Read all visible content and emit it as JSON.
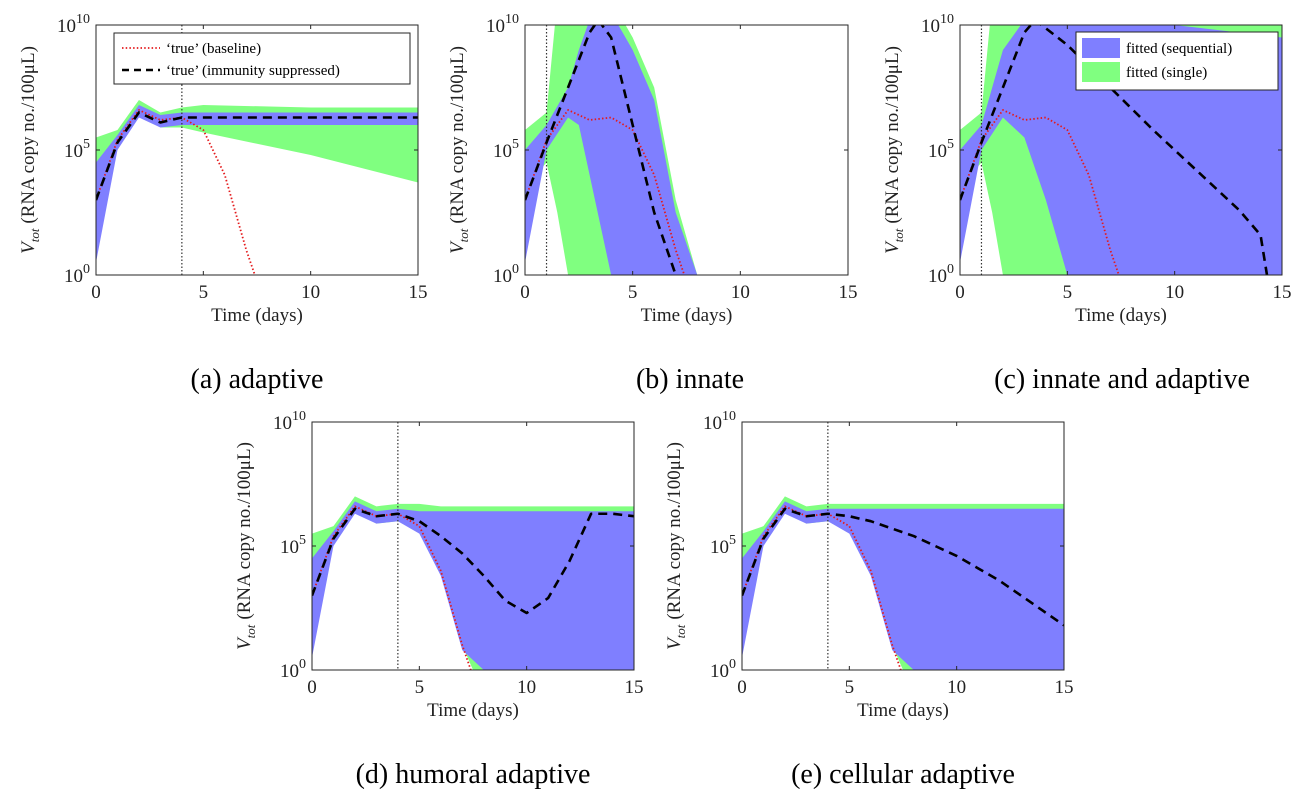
{
  "chart_data": [
    {
      "panel": "a",
      "type": "line",
      "caption": "(a) adaptive",
      "xlabel": "Time (days)",
      "ylabel_main": "V",
      "ylabel_sub": "tot",
      "ylabel_rest": "(RNA copy no./100μL)",
      "yscale": "log",
      "xlim": [
        0,
        15
      ],
      "ylim_log10": [
        0,
        10
      ],
      "xticks": [
        "0",
        "5",
        "10",
        "15"
      ],
      "yticks": [
        {
          "base": "10",
          "exp": "0"
        },
        {
          "base": "10",
          "exp": "5"
        },
        {
          "base": "10",
          "exp": "10"
        }
      ],
      "vline_x": 4,
      "legend": {
        "placement": "top-left",
        "entries": [
          "‘true’ (baseline)",
          "‘true’ (immunity suppressed)"
        ]
      },
      "series": [
        {
          "name": "‘true’ (baseline)",
          "color": "#e41a1c",
          "style": "dotted",
          "x": [
            0,
            1,
            2,
            3,
            4,
            5,
            6,
            7,
            7.4
          ],
          "log10_y": [
            3,
            5.4,
            6.6,
            6.2,
            6.3,
            5.8,
            4.0,
            1.0,
            0
          ]
        },
        {
          "name": "‘true’ (immunity suppressed)",
          "color": "#000000",
          "style": "dashed",
          "x": [
            0,
            1,
            2,
            3,
            4,
            5,
            10,
            15
          ],
          "log10_y": [
            3,
            5.3,
            6.5,
            6.1,
            6.3,
            6.3,
            6.3,
            6.3
          ]
        }
      ],
      "bands": [
        {
          "name": "fitted (single)",
          "color": "#80ff80",
          "x": [
            0,
            1,
            2,
            3,
            4,
            5,
            10,
            15
          ],
          "upper": [
            5.5,
            5.8,
            7.0,
            6.5,
            6.7,
            6.8,
            6.7,
            6.7
          ],
          "lower": [
            3.5,
            5.2,
            6.4,
            5.9,
            5.9,
            5.7,
            4.8,
            3.7
          ]
        },
        {
          "name": "fitted (sequential)",
          "color": "#7f7fff",
          "x": [
            0,
            1,
            2,
            3,
            4,
            5,
            10,
            15
          ],
          "upper": [
            4.5,
            5.6,
            6.8,
            6.4,
            6.5,
            6.5,
            6.5,
            6.5
          ],
          "lower": [
            0.5,
            5.0,
            6.3,
            5.9,
            6.0,
            6.0,
            6.0,
            6.0
          ]
        }
      ]
    },
    {
      "panel": "b",
      "type": "line",
      "caption": "(b) innate",
      "xlabel": "Time (days)",
      "ylabel_main": "V",
      "ylabel_sub": "tot",
      "ylabel_rest": "(RNA copy no./100μL)",
      "yscale": "log",
      "xlim": [
        0,
        15
      ],
      "ylim_log10": [
        0,
        10
      ],
      "xticks": [
        "0",
        "5",
        "10",
        "15"
      ],
      "yticks": [
        {
          "base": "10",
          "exp": "0"
        },
        {
          "base": "10",
          "exp": "5"
        },
        {
          "base": "10",
          "exp": "10"
        }
      ],
      "vline_x": 1,
      "series": [
        {
          "name": "‘true’ (baseline)",
          "color": "#e41a1c",
          "style": "dotted",
          "x": [
            0,
            1,
            2,
            3,
            4,
            5,
            6,
            7,
            7.4
          ],
          "log10_y": [
            3,
            5.4,
            6.6,
            6.2,
            6.3,
            5.8,
            4.0,
            1.0,
            0
          ]
        },
        {
          "name": "‘true’ (immunity suppressed)",
          "color": "#000000",
          "style": "dashed",
          "x": [
            0,
            1,
            2,
            3,
            3.4,
            4,
            5,
            6,
            7
          ],
          "log10_y": [
            3,
            5.3,
            7.5,
            9.7,
            10.2,
            9.5,
            6.0,
            2.5,
            0
          ]
        }
      ],
      "bands": [
        {
          "name": "fitted (single)",
          "color": "#80ff80",
          "x": [
            0,
            1,
            1.5,
            2,
            3,
            4,
            5,
            6,
            7,
            8
          ],
          "upper": [
            5.8,
            6.5,
            11,
            11,
            11,
            11,
            9.5,
            7.5,
            3.0,
            0
          ],
          "lower": [
            3.5,
            4.5,
            2.5,
            0,
            0,
            0,
            0,
            0,
            0,
            0
          ]
        },
        {
          "name": "fitted (sequential)",
          "color": "#7f7fff",
          "x": [
            0,
            1,
            2,
            2.5,
            3,
            4,
            5,
            6,
            7,
            8
          ],
          "upper": [
            5.0,
            6.0,
            7.5,
            9.0,
            10.2,
            10.5,
            9.0,
            7.0,
            2.5,
            0
          ],
          "lower": [
            0.5,
            5.0,
            6.3,
            6.0,
            4.0,
            0,
            0,
            0,
            0,
            0
          ]
        }
      ]
    },
    {
      "panel": "c",
      "type": "line",
      "caption": "(c) innate and adaptive",
      "xlabel": "Time (days)",
      "ylabel_main": "V",
      "ylabel_sub": "tot",
      "ylabel_rest": "(RNA copy no./100μL)",
      "yscale": "log",
      "xlim": [
        0,
        15
      ],
      "ylim_log10": [
        0,
        10
      ],
      "xticks": [
        "0",
        "5",
        "10",
        "15"
      ],
      "yticks": [
        {
          "base": "10",
          "exp": "0"
        },
        {
          "base": "10",
          "exp": "5"
        },
        {
          "base": "10",
          "exp": "10"
        }
      ],
      "vline_x": 1,
      "legend": {
        "placement": "top-right",
        "entries": [
          "fitted (sequential)",
          "fitted (single)"
        ]
      },
      "series": [
        {
          "name": "‘true’ (baseline)",
          "color": "#e41a1c",
          "style": "dotted",
          "x": [
            0,
            1,
            2,
            3,
            4,
            5,
            6,
            7,
            7.4
          ],
          "log10_y": [
            3,
            5.4,
            6.6,
            6.2,
            6.3,
            5.8,
            4.0,
            1.0,
            0
          ]
        },
        {
          "name": "‘true’ (immunity suppressed)",
          "color": "#000000",
          "style": "dashed",
          "x": [
            0,
            1,
            2,
            3,
            3.5,
            5,
            7,
            9,
            11,
            13,
            14,
            14.3
          ],
          "log10_y": [
            3,
            5.3,
            7.5,
            9.7,
            10.2,
            9.2,
            7.5,
            5.8,
            4.2,
            2.6,
            1.6,
            0
          ]
        }
      ],
      "bands": [
        {
          "name": "fitted (single)",
          "color": "#80ff80",
          "x": [
            0,
            1,
            1.5,
            2,
            3,
            4,
            5,
            10,
            15
          ],
          "upper": [
            5.8,
            6.5,
            11,
            11,
            11,
            11,
            11,
            10.5,
            10.0
          ],
          "lower": [
            3.5,
            4.5,
            2.5,
            0,
            0,
            0,
            0,
            0,
            0
          ]
        },
        {
          "name": "fitted (sequential)",
          "color": "#7f7fff",
          "x": [
            0,
            1,
            2,
            3,
            4,
            5,
            10,
            15
          ],
          "upper": [
            5.0,
            6.0,
            9.0,
            10.2,
            10.2,
            10.2,
            10.0,
            9.5
          ],
          "lower": [
            0.5,
            5.0,
            6.3,
            5.5,
            3.0,
            0,
            0,
            0
          ]
        }
      ]
    },
    {
      "panel": "d",
      "type": "line",
      "caption": "(d) humoral adaptive",
      "xlabel": "Time (days)",
      "ylabel_main": "V",
      "ylabel_sub": "tot",
      "ylabel_rest": "(RNA copy no./100μL)",
      "yscale": "log",
      "xlim": [
        0,
        15
      ],
      "ylim_log10": [
        0,
        10
      ],
      "xticks": [
        "0",
        "5",
        "10",
        "15"
      ],
      "yticks": [
        {
          "base": "10",
          "exp": "0"
        },
        {
          "base": "10",
          "exp": "5"
        },
        {
          "base": "10",
          "exp": "10"
        }
      ],
      "vline_x": 4,
      "series": [
        {
          "name": "‘true’ (baseline)",
          "color": "#e41a1c",
          "style": "dotted",
          "x": [
            0,
            1,
            2,
            3,
            4,
            5,
            6,
            7,
            7.4
          ],
          "log10_y": [
            3,
            5.4,
            6.6,
            6.2,
            6.3,
            5.8,
            4.0,
            1.0,
            0
          ]
        },
        {
          "name": "‘true’ (immunity suppressed)",
          "color": "#000000",
          "style": "dashed",
          "x": [
            0,
            1,
            2,
            3,
            4,
            5,
            6,
            7,
            8,
            9,
            10,
            11,
            12,
            13,
            14,
            15
          ],
          "log10_y": [
            3,
            5.3,
            6.5,
            6.2,
            6.3,
            6.0,
            5.4,
            4.7,
            3.8,
            2.8,
            2.3,
            2.9,
            4.4,
            6.3,
            6.3,
            6.2
          ]
        }
      ],
      "bands": [
        {
          "name": "fitted (single)",
          "color": "#80ff80",
          "x": [
            0,
            1,
            2,
            3,
            4,
            5,
            6,
            7,
            7.5,
            8,
            10,
            15
          ],
          "upper": [
            5.5,
            5.8,
            7.0,
            6.6,
            6.7,
            6.7,
            6.6,
            6.6,
            6.6,
            6.6,
            6.6,
            6.6
          ],
          "lower": [
            3.5,
            5.2,
            6.4,
            5.9,
            6.0,
            5.6,
            4.0,
            1.0,
            0,
            0,
            0,
            0
          ]
        },
        {
          "name": "fitted (sequential)",
          "color": "#7f7fff",
          "x": [
            0,
            1,
            2,
            3,
            4,
            5,
            6,
            7,
            8,
            10,
            15
          ],
          "upper": [
            4.5,
            5.6,
            6.8,
            6.4,
            6.5,
            6.4,
            6.4,
            6.4,
            6.4,
            6.4,
            6.4
          ],
          "lower": [
            0.5,
            5.0,
            6.3,
            5.9,
            6.0,
            5.5,
            3.8,
            0.8,
            0,
            0,
            0
          ]
        }
      ]
    },
    {
      "panel": "e",
      "type": "line",
      "caption": "(e) cellular adaptive",
      "xlabel": "Time (days)",
      "ylabel_main": "V",
      "ylabel_sub": "tot",
      "ylabel_rest": "(RNA copy no./100μL)",
      "yscale": "log",
      "xlim": [
        0,
        15
      ],
      "ylim_log10": [
        0,
        10
      ],
      "xticks": [
        "0",
        "5",
        "10",
        "15"
      ],
      "yticks": [
        {
          "base": "10",
          "exp": "0"
        },
        {
          "base": "10",
          "exp": "5"
        },
        {
          "base": "10",
          "exp": "10"
        }
      ],
      "vline_x": 4,
      "series": [
        {
          "name": "‘true’ (baseline)",
          "color": "#e41a1c",
          "style": "dotted",
          "x": [
            0,
            1,
            2,
            3,
            4,
            5,
            6,
            7,
            7.4
          ],
          "log10_y": [
            3,
            5.4,
            6.6,
            6.2,
            6.3,
            5.8,
            4.0,
            1.0,
            0
          ]
        },
        {
          "name": "‘true’ (immunity suppressed)",
          "color": "#000000",
          "style": "dashed",
          "x": [
            0,
            1,
            2,
            3,
            4,
            5,
            6,
            7,
            8,
            9,
            10,
            11,
            12,
            13,
            14,
            15
          ],
          "log10_y": [
            3,
            5.3,
            6.5,
            6.2,
            6.3,
            6.2,
            6.0,
            5.7,
            5.4,
            5.0,
            4.6,
            4.1,
            3.6,
            3.0,
            2.4,
            1.8
          ]
        }
      ],
      "bands": [
        {
          "name": "fitted (single)",
          "color": "#80ff80",
          "x": [
            0,
            1,
            2,
            3,
            4,
            5,
            6,
            7,
            7.5,
            8,
            10,
            15
          ],
          "upper": [
            5.5,
            5.8,
            7.0,
            6.6,
            6.7,
            6.7,
            6.7,
            6.7,
            6.7,
            6.7,
            6.7,
            6.7
          ],
          "lower": [
            3.5,
            5.2,
            6.4,
            5.9,
            6.0,
            5.6,
            4.0,
            1.0,
            0,
            0,
            0,
            0
          ]
        },
        {
          "name": "fitted (sequential)",
          "color": "#7f7fff",
          "x": [
            0,
            1,
            2,
            3,
            4,
            5,
            6,
            7,
            8,
            10,
            15
          ],
          "upper": [
            4.5,
            5.6,
            6.8,
            6.4,
            6.5,
            6.5,
            6.5,
            6.5,
            6.5,
            6.5,
            6.5
          ],
          "lower": [
            0.5,
            5.0,
            6.3,
            5.9,
            6.0,
            5.5,
            3.8,
            0.8,
            0,
            0,
            0
          ]
        }
      ]
    }
  ]
}
